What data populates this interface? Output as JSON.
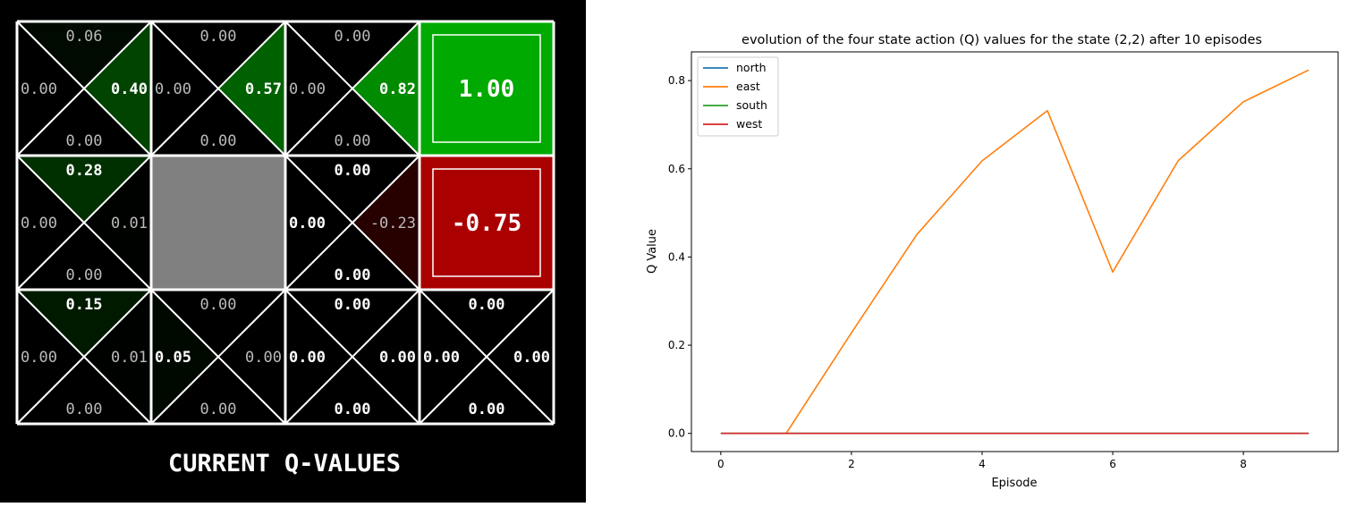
{
  "gridworld": {
    "caption": "CURRENT Q-VALUES",
    "rows": 3,
    "cols": 4,
    "cells": [
      {
        "row": 0,
        "col": 0,
        "type": "normal",
        "q": {
          "north": "0.06",
          "east": "0.40",
          "south": "0.00",
          "west": "0.00"
        },
        "best": "east"
      },
      {
        "row": 0,
        "col": 1,
        "type": "normal",
        "q": {
          "north": "0.00",
          "east": "0.57",
          "south": "0.00",
          "west": "0.00"
        },
        "best": "east"
      },
      {
        "row": 0,
        "col": 2,
        "type": "normal",
        "q": {
          "north": "0.00",
          "east": "0.82",
          "south": "0.00",
          "west": "0.00"
        },
        "best": "east"
      },
      {
        "row": 0,
        "col": 3,
        "type": "terminal",
        "value": "1.00"
      },
      {
        "row": 1,
        "col": 0,
        "type": "normal",
        "q": {
          "north": "0.28",
          "east": "0.01",
          "south": "0.00",
          "west": "0.00"
        },
        "best": "north"
      },
      {
        "row": 1,
        "col": 1,
        "type": "wall"
      },
      {
        "row": 1,
        "col": 2,
        "type": "normal",
        "q": {
          "north": "0.00",
          "east": "-0.23",
          "south": "0.00",
          "west": "0.00"
        },
        "best": "north,south,west"
      },
      {
        "row": 1,
        "col": 3,
        "type": "terminal",
        "value": "-0.75"
      },
      {
        "row": 2,
        "col": 0,
        "type": "normal",
        "q": {
          "north": "0.15",
          "east": "0.01",
          "south": "0.00",
          "west": "0.00"
        },
        "best": "north"
      },
      {
        "row": 2,
        "col": 1,
        "type": "normal",
        "q": {
          "north": "0.00",
          "east": "0.00",
          "south": "0.00",
          "west": "0.05"
        },
        "best": "west"
      },
      {
        "row": 2,
        "col": 2,
        "type": "normal",
        "q": {
          "north": "0.00",
          "east": "0.00",
          "south": "0.00",
          "west": "0.00"
        },
        "best": "north,east,south,west"
      },
      {
        "row": 2,
        "col": 3,
        "type": "normal",
        "q": {
          "north": "0.00",
          "east": "0.00",
          "south": "0.00",
          "west": "0.00"
        },
        "best": "north,east,south,west"
      }
    ],
    "colors": {
      "background": "#000000",
      "grid_line": "#ffffff",
      "wall": "#808080",
      "positive": "#00aa00",
      "negative": "#aa0000",
      "best_text": "#ffffff",
      "other_text": "#bbbbbb"
    }
  },
  "chart_data": {
    "type": "line",
    "title": "evolution of the four state action (Q) values for the state (2,2) after 10 episodes",
    "xlabel": "Episode",
    "ylabel": "Q Value",
    "x": [
      0,
      1,
      2,
      3,
      4,
      5,
      6,
      7,
      8,
      9
    ],
    "series": [
      {
        "name": "north",
        "color": "#1f77b4",
        "values": [
          0,
          0,
          0,
          0,
          0,
          0,
          0,
          0,
          0,
          0
        ]
      },
      {
        "name": "east",
        "color": "#ff7f0e",
        "values": [
          0,
          0,
          0.228,
          0.451,
          0.618,
          0.732,
          0.366,
          0.618,
          0.752,
          0.824
        ]
      },
      {
        "name": "south",
        "color": "#2ca02c",
        "values": [
          0,
          0,
          0,
          0,
          0,
          0,
          0,
          0,
          0,
          0
        ]
      },
      {
        "name": "west",
        "color": "#d62728",
        "values": [
          0,
          0,
          0,
          0,
          0,
          0,
          0,
          0,
          0,
          0
        ]
      }
    ],
    "xlim": [
      -0.45,
      9.45
    ],
    "ylim": [
      -0.0412,
      0.8652
    ],
    "xticks": [
      0,
      2,
      4,
      6,
      8
    ],
    "yticks": [
      0.0,
      0.2,
      0.4,
      0.6,
      0.8
    ],
    "xtick_labels": [
      "0",
      "2",
      "4",
      "6",
      "8"
    ],
    "ytick_labels": [
      "0.0",
      "0.2",
      "0.4",
      "0.6",
      "0.8"
    ],
    "legend_position": "upper-left",
    "grid": false
  }
}
